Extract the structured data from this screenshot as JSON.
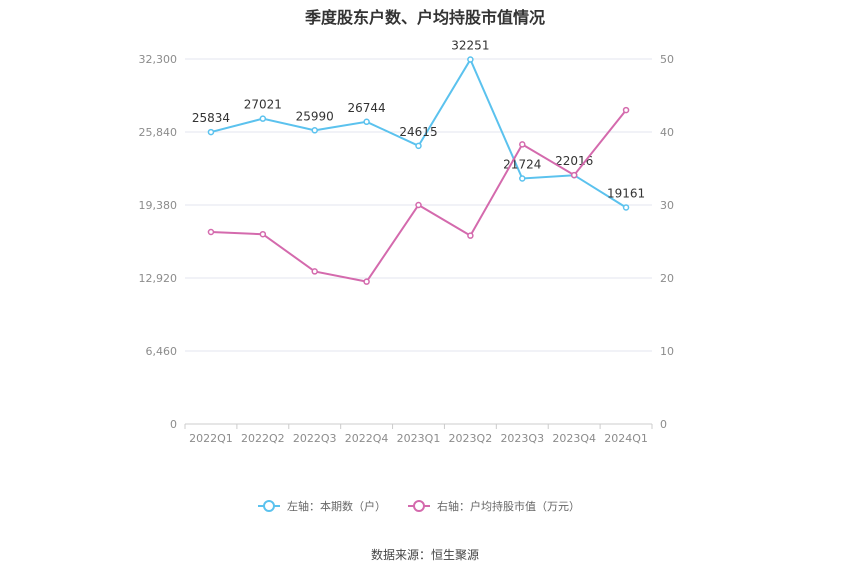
{
  "title": "季度股东户数、户均持股市值情况",
  "source": "数据来源：恒生聚源",
  "chart_data": {
    "type": "line",
    "title": "季度股东户数、户均持股市值情况",
    "categories": [
      "2022Q1",
      "2022Q2",
      "2022Q3",
      "2022Q4",
      "2023Q1",
      "2023Q2",
      "2023Q3",
      "2023Q4",
      "2024Q1"
    ],
    "left_axis": {
      "ticks": [
        "32,300",
        "25,840",
        "19,380",
        "12,920",
        "6,460",
        "0"
      ],
      "range": [
        0,
        32300
      ]
    },
    "right_axis": {
      "ticks": [
        "50",
        "40",
        "30",
        "20",
        "10",
        "0"
      ],
      "range": [
        0,
        50
      ]
    },
    "series": [
      {
        "name": "左轴：本期数（户）",
        "axis": "left",
        "color": "#5bc2ee",
        "values": [
          25834,
          27021,
          25990,
          26744,
          24615,
          32251,
          21724,
          22016,
          19161
        ],
        "labels": [
          "25834",
          "27021",
          "25990",
          "26744",
          "24615",
          "32251",
          "21724",
          "22016",
          "19161"
        ]
      },
      {
        "name": "右轴：户均持股市值（万元）",
        "axis": "right",
        "color": "#d46aad",
        "values": [
          26.3,
          26.0,
          20.9,
          19.5,
          30.0,
          25.8,
          38.3,
          34.1,
          43.0
        ]
      }
    ],
    "grid": true,
    "legend_position": "bottom-center"
  }
}
